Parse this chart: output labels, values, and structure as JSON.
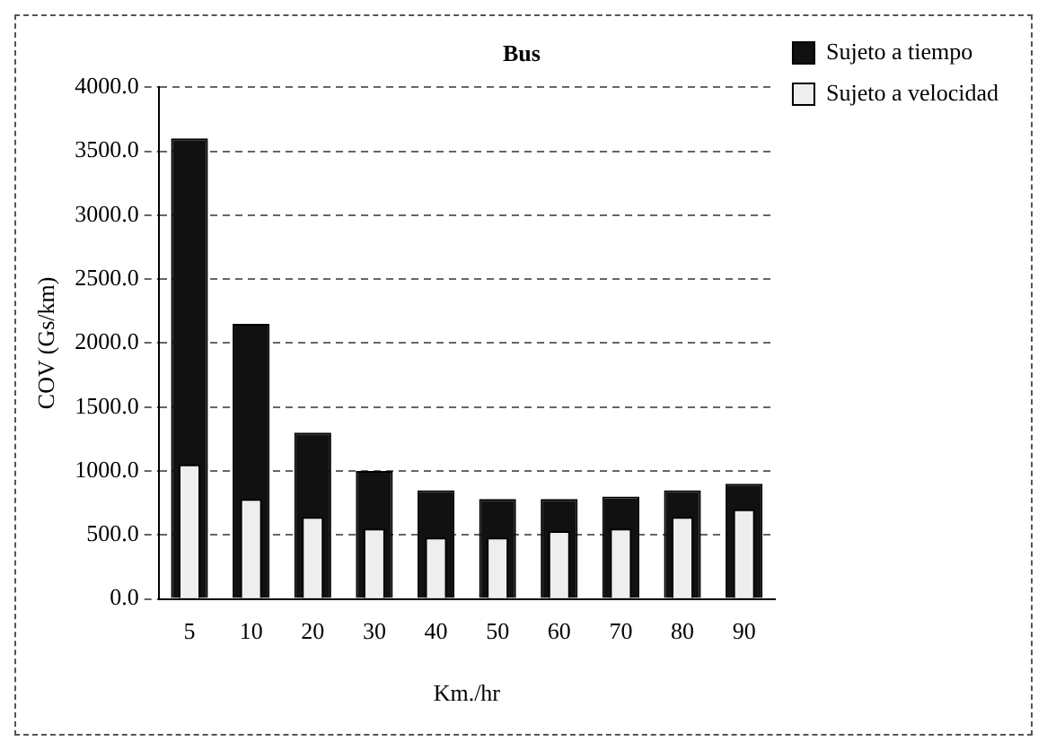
{
  "chart_data": {
    "type": "bar",
    "title": "Bus",
    "xlabel": "Km./hr",
    "ylabel": "COV (Gs/km)",
    "categories": [
      "5",
      "10",
      "20",
      "30",
      "40",
      "50",
      "60",
      "70",
      "80",
      "90"
    ],
    "series": [
      {
        "name": "Sujeto a tiempo",
        "color": "#111111",
        "values": [
          3600,
          2150,
          1300,
          1000,
          850,
          780,
          780,
          800,
          850,
          900
        ]
      },
      {
        "name": "Sujeto a velocidad",
        "color": "#eeeeee",
        "values": [
          1050,
          780,
          640,
          550,
          480,
          480,
          530,
          550,
          640,
          700
        ]
      }
    ],
    "ylim": [
      0,
      4000
    ],
    "yticks": [
      {
        "value": 0,
        "label": "0.0"
      },
      {
        "value": 500,
        "label": "500.0"
      },
      {
        "value": 1000,
        "label": "1000.0"
      },
      {
        "value": 1500,
        "label": "1500.0"
      },
      {
        "value": 2000,
        "label": "2000.0"
      },
      {
        "value": 2500,
        "label": "2500.0"
      },
      {
        "value": 3000,
        "label": "3000.0"
      },
      {
        "value": 3500,
        "label": "3500.0"
      },
      {
        "value": 4000,
        "label": "4000.0"
      }
    ],
    "grid": "y",
    "legend": "top right"
  }
}
